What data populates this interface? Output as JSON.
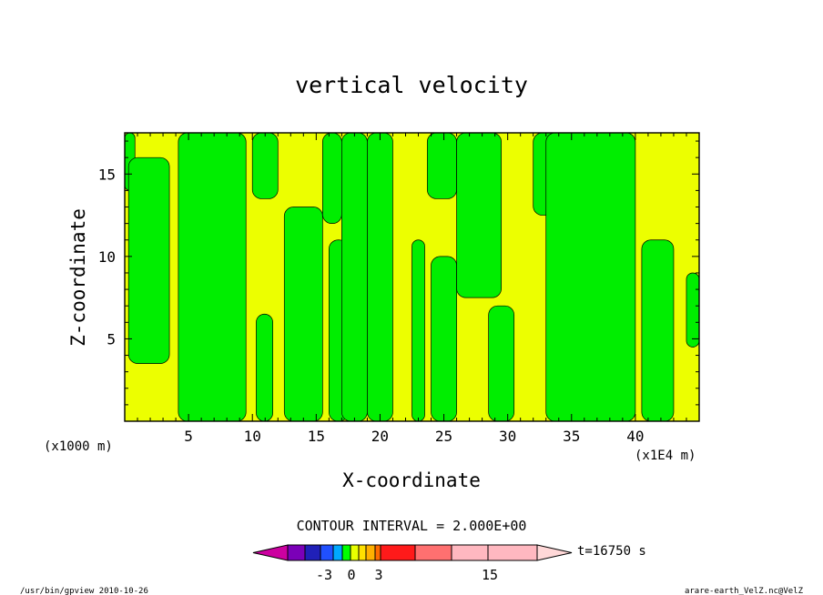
{
  "chart_data": {
    "type": "heatmap",
    "title": "vertical velocity",
    "xlabel": "X-coordinate",
    "ylabel": "Z-coordinate",
    "x_units": "(x1E4 m)",
    "y_units": "(x1000 m)",
    "xlim": [
      0,
      45
    ],
    "ylim": [
      0,
      17.5
    ],
    "x_ticks": [
      "5",
      "10",
      "15",
      "20",
      "25",
      "30",
      "35",
      "40"
    ],
    "y_ticks": [
      "5",
      "10",
      "15"
    ],
    "contour_interval_label": "CONTOUR INTERVAL = 2.000E+00",
    "time_label": "t=16750 s",
    "colorbar_tick_labels": [
      "-3",
      "0",
      "3",
      "15"
    ],
    "colorbar_colors": [
      "#cc00a0",
      "#7b00b8",
      "#2020b8",
      "#2050ff",
      "#00a8ff",
      "#00ff00",
      "#e8ff00",
      "#ffe000",
      "#ffb000",
      "#ff6a00",
      "#ff1a1a",
      "#ff7070",
      "#ffb8c0",
      "#ffd8d8"
    ],
    "field_colors": {
      "positive": "#ecff00",
      "negative": "#00ee00"
    },
    "green_bands": [
      {
        "x0": 0.0,
        "x1": 0.8,
        "top": 17.5,
        "bottom": 14.0
      },
      {
        "x0": 0.3,
        "x1": 3.5,
        "top": 16.0,
        "bottom": 3.5
      },
      {
        "x0": 4.2,
        "x1": 9.5,
        "top": 17.5,
        "bottom": 0
      },
      {
        "x0": 10.0,
        "x1": 12.0,
        "top": 17.5,
        "bottom": 13.5
      },
      {
        "x0": 10.3,
        "x1": 11.6,
        "top": 6.5,
        "bottom": 0
      },
      {
        "x0": 12.5,
        "x1": 15.5,
        "top": 13.0,
        "bottom": 0
      },
      {
        "x0": 15.5,
        "x1": 17.0,
        "top": 17.5,
        "bottom": 12.0
      },
      {
        "x0": 16.0,
        "x1": 17.5,
        "top": 11.0,
        "bottom": 0
      },
      {
        "x0": 17.0,
        "x1": 19.0,
        "top": 17.5,
        "bottom": 0
      },
      {
        "x0": 19.0,
        "x1": 21.0,
        "top": 17.5,
        "bottom": 0
      },
      {
        "x0": 22.5,
        "x1": 23.5,
        "top": 11.0,
        "bottom": 0
      },
      {
        "x0": 23.7,
        "x1": 26.0,
        "top": 17.5,
        "bottom": 13.5
      },
      {
        "x0": 24.0,
        "x1": 26.0,
        "top": 10.0,
        "bottom": 0
      },
      {
        "x0": 26.0,
        "x1": 29.5,
        "top": 17.5,
        "bottom": 7.5
      },
      {
        "x0": 28.5,
        "x1": 30.5,
        "top": 7.0,
        "bottom": 0
      },
      {
        "x0": 32.0,
        "x1": 34.0,
        "top": 17.5,
        "bottom": 12.5
      },
      {
        "x0": 33.0,
        "x1": 40.0,
        "top": 17.5,
        "bottom": 0
      },
      {
        "x0": 40.5,
        "x1": 43.0,
        "top": 11.0,
        "bottom": 0
      },
      {
        "x0": 44.0,
        "x1": 45.0,
        "top": 9.0,
        "bottom": 4.5
      }
    ]
  },
  "footer": {
    "left": "/usr/bin/gpview  2010-10-26",
    "right": "arare-earth_VelZ.nc@VelZ"
  }
}
